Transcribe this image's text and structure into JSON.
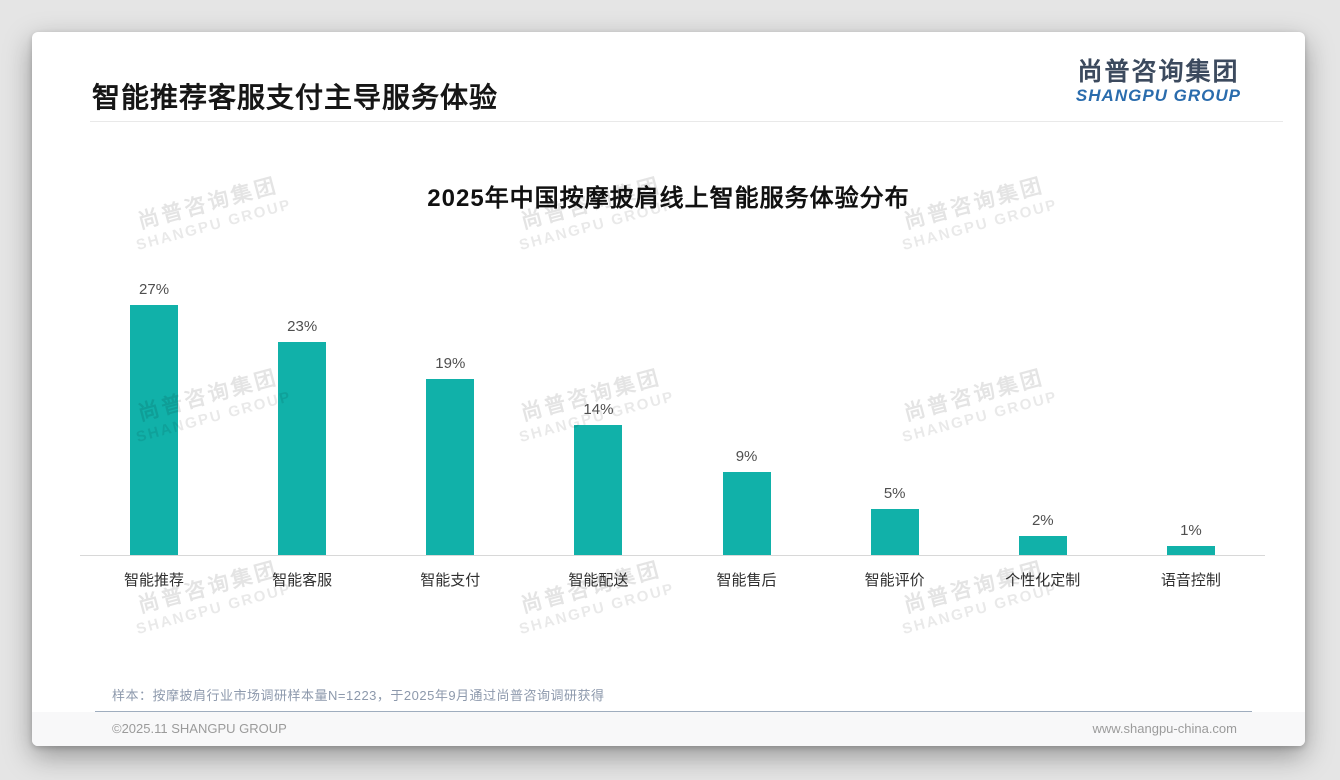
{
  "header": {
    "title": "智能推荐客服支付主导服务体验"
  },
  "logo": {
    "name_cn": "尚普咨询集团",
    "name_en": "SHANGPU GROUP"
  },
  "watermark": {
    "line1": "尚普咨询集团",
    "line2": "SHANGPU GROUP"
  },
  "chart_data": {
    "type": "bar",
    "title": "2025年中国按摩披肩线上智能服务体验分布",
    "categories": [
      "智能推荐",
      "智能客服",
      "智能支付",
      "智能配送",
      "智能售后",
      "智能评价",
      "个性化定制",
      "语音控制"
    ],
    "values": [
      27,
      23,
      19,
      14,
      9,
      5,
      2,
      1
    ],
    "unit": "%",
    "data_labels": [
      "27%",
      "23%",
      "19%",
      "14%",
      "9%",
      "5%",
      "2%",
      "1%"
    ],
    "xlabel": "",
    "ylabel": "",
    "ylim": [
      0,
      30
    ],
    "grid": false,
    "legend": "none"
  },
  "footnote": {
    "text": "样本：按摩披肩行业市场调研样本量N=1223，于2025年9月通过尚普咨询调研获得"
  },
  "footer": {
    "copyright": "©2025.11 SHANGPU GROUP",
    "website": "www.shangpu-china.com"
  },
  "colors": {
    "bar": "#11b1a9",
    "logo_dark": "#3c4a5e",
    "logo_blue": "#2a6cad",
    "title_text": "#161616",
    "footnote_text": "#8d99ac"
  }
}
